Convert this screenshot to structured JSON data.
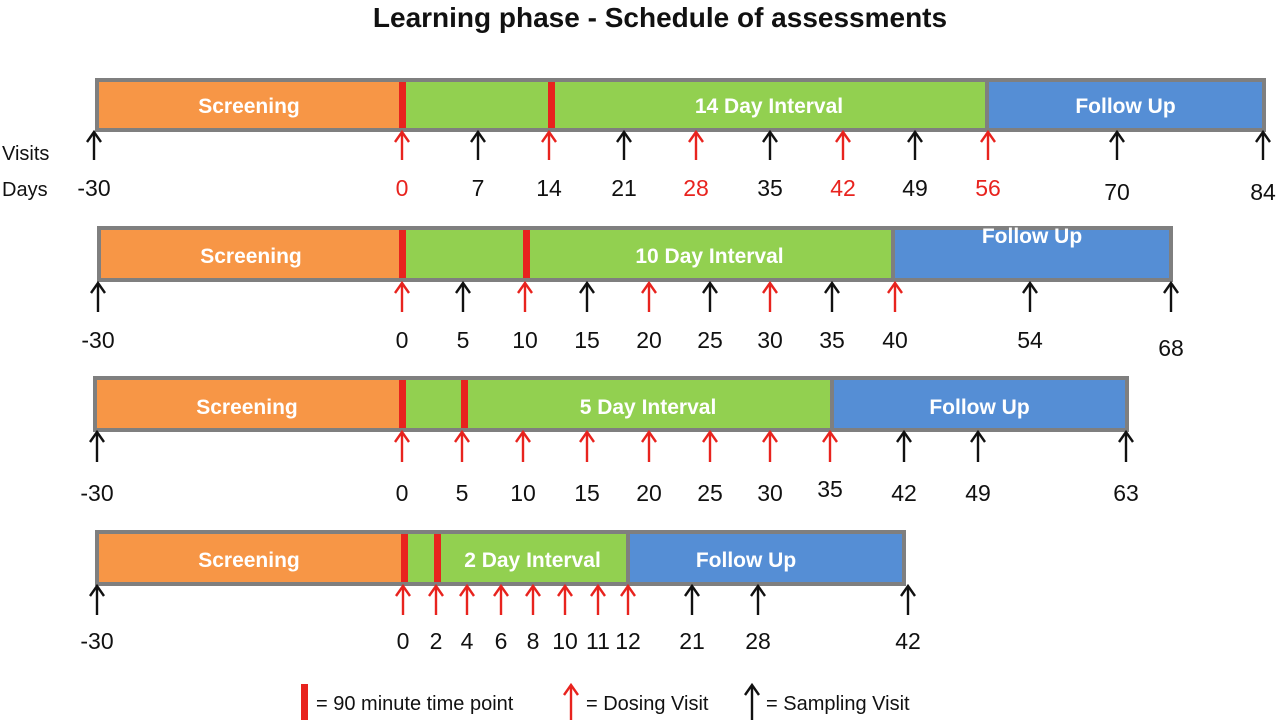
{
  "title": "Learning phase - Schedule of assessments",
  "row_labels": {
    "visits": "Visits",
    "days": "Days"
  },
  "colors": {
    "screening": "#f79646",
    "interval": "#92d050",
    "follow_up": "#558ed5",
    "border": "#7f7f7f",
    "dosing": "#e8231e",
    "sampling": "#111111",
    "marker": "#e8231e"
  },
  "timelines": [
    {
      "segments": [
        {
          "kind": "screening",
          "label": "Screening"
        },
        {
          "kind": "interval",
          "label": "14 Day Interval"
        },
        {
          "kind": "follow_up",
          "label": "Follow Up"
        }
      ],
      "markers_90min": [
        0,
        14
      ],
      "visits": [
        {
          "day": "-30",
          "type": "sampling",
          "label_color": "black"
        },
        {
          "day": "0",
          "type": "dosing",
          "label_color": "red"
        },
        {
          "day": "7",
          "type": "sampling",
          "label_color": "black"
        },
        {
          "day": "14",
          "type": "dosing",
          "label_color": "black"
        },
        {
          "day": "21",
          "type": "sampling",
          "label_color": "black"
        },
        {
          "day": "28",
          "type": "dosing",
          "label_color": "red"
        },
        {
          "day": "35",
          "type": "sampling",
          "label_color": "black"
        },
        {
          "day": "42",
          "type": "dosing",
          "label_color": "red"
        },
        {
          "day": "49",
          "type": "sampling",
          "label_color": "black"
        },
        {
          "day": "56",
          "type": "dosing",
          "label_color": "red"
        },
        {
          "day": "70",
          "type": "sampling",
          "label_color": "black"
        },
        {
          "day": "84",
          "type": "sampling",
          "label_color": "black"
        }
      ]
    },
    {
      "segments": [
        {
          "kind": "screening",
          "label": "Screening"
        },
        {
          "kind": "interval",
          "label": "10 Day Interval"
        },
        {
          "kind": "follow_up",
          "label": "Follow Up"
        }
      ],
      "markers_90min": [
        0,
        10
      ],
      "visits": [
        {
          "day": "-30",
          "type": "sampling",
          "label_color": "black"
        },
        {
          "day": "0",
          "type": "dosing",
          "label_color": "black"
        },
        {
          "day": "5",
          "type": "sampling",
          "label_color": "black"
        },
        {
          "day": "10",
          "type": "dosing",
          "label_color": "black"
        },
        {
          "day": "15",
          "type": "sampling",
          "label_color": "black"
        },
        {
          "day": "20",
          "type": "dosing",
          "label_color": "black"
        },
        {
          "day": "25",
          "type": "sampling",
          "label_color": "black"
        },
        {
          "day": "30",
          "type": "dosing",
          "label_color": "black"
        },
        {
          "day": "35",
          "type": "sampling",
          "label_color": "black"
        },
        {
          "day": "40",
          "type": "dosing",
          "label_color": "black"
        },
        {
          "day": "54",
          "type": "sampling",
          "label_color": "black"
        },
        {
          "day": "68",
          "type": "sampling",
          "label_color": "black"
        }
      ]
    },
    {
      "segments": [
        {
          "kind": "screening",
          "label": "Screening"
        },
        {
          "kind": "interval",
          "label": "5 Day Interval"
        },
        {
          "kind": "follow_up",
          "label": "Follow Up"
        }
      ],
      "markers_90min": [
        0,
        5
      ],
      "visits": [
        {
          "day": "-30",
          "type": "sampling",
          "label_color": "black"
        },
        {
          "day": "0",
          "type": "dosing",
          "label_color": "black"
        },
        {
          "day": "5",
          "type": "dosing",
          "label_color": "black"
        },
        {
          "day": "10",
          "type": "dosing",
          "label_color": "black"
        },
        {
          "day": "15",
          "type": "dosing",
          "label_color": "black"
        },
        {
          "day": "20",
          "type": "dosing",
          "label_color": "black"
        },
        {
          "day": "25",
          "type": "dosing",
          "label_color": "black"
        },
        {
          "day": "30",
          "type": "dosing",
          "label_color": "black"
        },
        {
          "day": "35",
          "type": "dosing",
          "label_color": "black"
        },
        {
          "day": "42",
          "type": "sampling",
          "label_color": "black"
        },
        {
          "day": "49",
          "type": "sampling",
          "label_color": "black"
        },
        {
          "day": "63",
          "type": "sampling",
          "label_color": "black"
        }
      ]
    },
    {
      "segments": [
        {
          "kind": "screening",
          "label": "Screening"
        },
        {
          "kind": "interval",
          "label": "2 Day Interval"
        },
        {
          "kind": "follow_up",
          "label": "Follow Up"
        }
      ],
      "markers_90min": [
        0,
        2
      ],
      "visits": [
        {
          "day": "-30",
          "type": "sampling",
          "label_color": "black"
        },
        {
          "day": "0",
          "type": "dosing",
          "label_color": "black"
        },
        {
          "day": "2",
          "type": "dosing",
          "label_color": "black"
        },
        {
          "day": "4",
          "type": "dosing",
          "label_color": "black"
        },
        {
          "day": "6",
          "type": "dosing",
          "label_color": "black"
        },
        {
          "day": "8",
          "type": "dosing",
          "label_color": "black"
        },
        {
          "day": "10",
          "type": "dosing",
          "label_color": "black"
        },
        {
          "day": "11",
          "type": "dosing",
          "label_color": "black"
        },
        {
          "day": "12",
          "type": "dosing",
          "label_color": "black"
        },
        {
          "day": "21",
          "type": "sampling",
          "label_color": "black"
        },
        {
          "day": "28",
          "type": "sampling",
          "label_color": "black"
        },
        {
          "day": "42",
          "type": "sampling",
          "label_color": "black"
        }
      ]
    }
  ],
  "legend": {
    "marker_text": "= 90 minute time point",
    "dosing_text": "= Dosing Visit",
    "sampling_text": "= Sampling Visit"
  }
}
